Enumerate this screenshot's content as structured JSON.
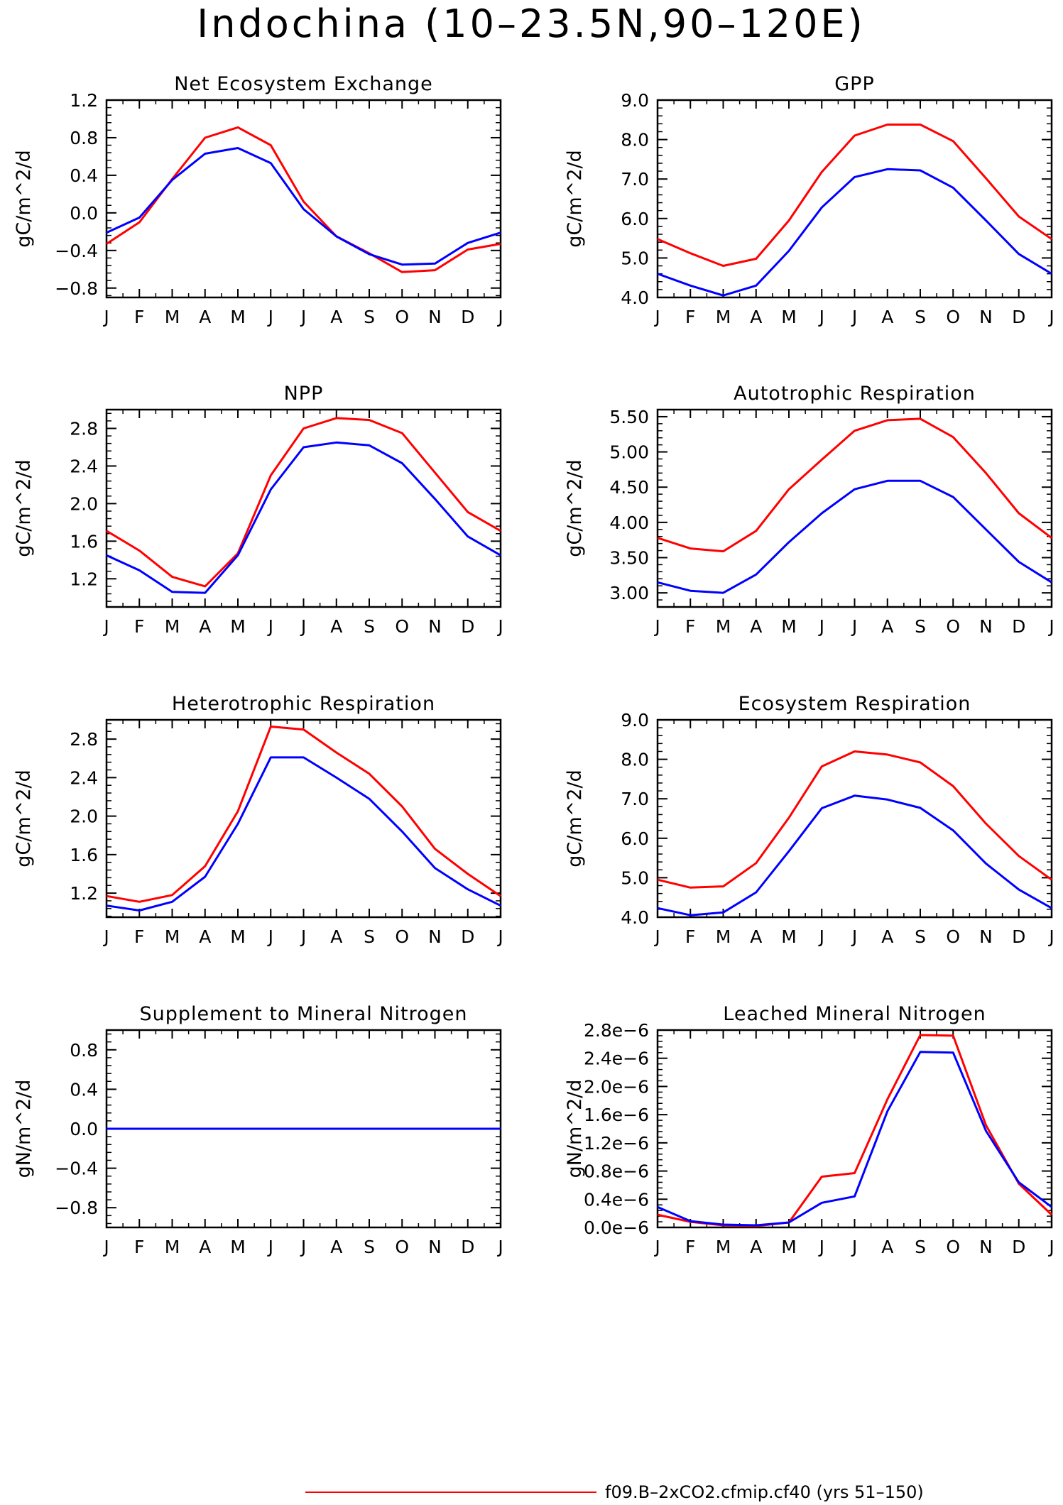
{
  "page_title": "Indochina (10–23.5N,90–120E)",
  "months": [
    "J",
    "F",
    "M",
    "A",
    "M",
    "J",
    "J",
    "A",
    "S",
    "O",
    "N",
    "D",
    "J"
  ],
  "colors": {
    "case": "#ff0000",
    "control": "#0000ff",
    "axis": "#000000"
  },
  "legend": {
    "entries": [
      {
        "label": "f09.B–2xCO2.cfmip.cf40 (yrs 51–150)",
        "color": "#ff0000"
      }
    ]
  },
  "chart_data": [
    {
      "type": "line",
      "title": "Net Ecosystem Exchange",
      "ylabel": "gC/m^2/d",
      "ylim": [
        -0.9,
        1.2
      ],
      "yticks": [
        -0.8,
        -0.4,
        0.0,
        0.4,
        0.8,
        1.2
      ],
      "ytick_labels": [
        "−0.8",
        "−0.4",
        "0.0",
        "0.4",
        "0.8",
        "1.2"
      ],
      "categories": [
        "J",
        "F",
        "M",
        "A",
        "M",
        "J",
        "J",
        "A",
        "S",
        "O",
        "N",
        "D",
        "J"
      ],
      "series": [
        {
          "color": "#ff0000",
          "values": [
            -0.33,
            -0.1,
            0.36,
            0.8,
            0.91,
            0.72,
            0.12,
            -0.25,
            -0.43,
            -0.63,
            -0.61,
            -0.39,
            -0.33
          ]
        },
        {
          "color": "#0000ff",
          "values": [
            -0.21,
            -0.05,
            0.35,
            0.63,
            0.69,
            0.53,
            0.04,
            -0.25,
            -0.44,
            -0.55,
            -0.54,
            -0.32,
            -0.21
          ]
        }
      ]
    },
    {
      "type": "line",
      "title": "GPP",
      "ylabel": "gC/m^2/d",
      "ylim": [
        4.0,
        9.0
      ],
      "yticks": [
        4.0,
        5.0,
        6.0,
        7.0,
        8.0,
        9.0
      ],
      "ytick_labels": [
        "4.0",
        "5.0",
        "6.0",
        "7.0",
        "8.0",
        "9.0"
      ],
      "categories": [
        "J",
        "F",
        "M",
        "A",
        "M",
        "J",
        "J",
        "A",
        "S",
        "O",
        "N",
        "D",
        "J"
      ],
      "series": [
        {
          "color": "#ff0000",
          "values": [
            5.48,
            5.12,
            4.8,
            4.98,
            5.95,
            7.18,
            8.1,
            8.38,
            8.38,
            7.96,
            7.02,
            6.05,
            5.48
          ]
        },
        {
          "color": "#0000ff",
          "values": [
            4.6,
            4.3,
            4.05,
            4.3,
            5.18,
            6.28,
            7.05,
            7.25,
            7.22,
            6.78,
            5.95,
            5.1,
            4.6
          ]
        }
      ]
    },
    {
      "type": "line",
      "title": "NPP",
      "ylabel": "gC/m^2/d",
      "ylim": [
        0.9,
        3.0
      ],
      "yticks": [
        1.2,
        1.6,
        2.0,
        2.4,
        2.8
      ],
      "ytick_labels": [
        "1.2",
        "1.6",
        "2.0",
        "2.4",
        "2.8"
      ],
      "categories": [
        "J",
        "F",
        "M",
        "A",
        "M",
        "J",
        "J",
        "A",
        "S",
        "O",
        "N",
        "D",
        "J"
      ],
      "series": [
        {
          "color": "#ff0000",
          "values": [
            1.71,
            1.5,
            1.22,
            1.12,
            1.47,
            2.3,
            2.8,
            2.91,
            2.89,
            2.75,
            2.33,
            1.91,
            1.71
          ]
        },
        {
          "color": "#0000ff",
          "values": [
            1.45,
            1.29,
            1.06,
            1.05,
            1.45,
            2.15,
            2.6,
            2.65,
            2.62,
            2.43,
            2.05,
            1.65,
            1.45
          ]
        }
      ]
    },
    {
      "type": "line",
      "title": "Autotrophic Respiration",
      "ylabel": "gC/m^2/d",
      "ylim": [
        2.8,
        5.6
      ],
      "yticks": [
        3.0,
        3.5,
        4.0,
        4.5,
        5.0,
        5.5
      ],
      "ytick_labels": [
        "3.00",
        "3.50",
        "4.00",
        "4.50",
        "5.00",
        "5.50"
      ],
      "categories": [
        "J",
        "F",
        "M",
        "A",
        "M",
        "J",
        "J",
        "A",
        "S",
        "O",
        "N",
        "D",
        "J"
      ],
      "series": [
        {
          "color": "#ff0000",
          "values": [
            3.78,
            3.63,
            3.59,
            3.88,
            4.47,
            4.89,
            5.3,
            5.45,
            5.47,
            5.21,
            4.7,
            4.13,
            3.78
          ]
        },
        {
          "color": "#0000ff",
          "values": [
            3.15,
            3.03,
            3.0,
            3.26,
            3.72,
            4.13,
            4.47,
            4.59,
            4.59,
            4.36,
            3.9,
            3.44,
            3.15
          ]
        }
      ]
    },
    {
      "type": "line",
      "title": "Heterotrophic Respiration",
      "ylabel": "gC/m^2/d",
      "ylim": [
        0.95,
        3.0
      ],
      "yticks": [
        1.2,
        1.6,
        2.0,
        2.4,
        2.8
      ],
      "ytick_labels": [
        "1.2",
        "1.6",
        "2.0",
        "2.4",
        "2.8"
      ],
      "categories": [
        "J",
        "F",
        "M",
        "A",
        "M",
        "J",
        "J",
        "A",
        "S",
        "O",
        "N",
        "D",
        "J"
      ],
      "series": [
        {
          "color": "#ff0000",
          "values": [
            1.17,
            1.11,
            1.18,
            1.48,
            2.05,
            2.93,
            2.9,
            2.66,
            2.44,
            2.1,
            1.66,
            1.4,
            1.17
          ]
        },
        {
          "color": "#0000ff",
          "values": [
            1.07,
            1.02,
            1.11,
            1.37,
            1.92,
            2.61,
            2.61,
            2.4,
            2.18,
            1.84,
            1.46,
            1.24,
            1.07
          ]
        }
      ]
    },
    {
      "type": "line",
      "title": "Ecosystem Respiration",
      "ylabel": "gC/m^2/d",
      "ylim": [
        4.0,
        9.0
      ],
      "yticks": [
        4.0,
        5.0,
        6.0,
        7.0,
        8.0,
        9.0
      ],
      "ytick_labels": [
        "4.0",
        "5.0",
        "6.0",
        "7.0",
        "8.0",
        "9.0"
      ],
      "categories": [
        "J",
        "F",
        "M",
        "A",
        "M",
        "J",
        "J",
        "A",
        "S",
        "O",
        "N",
        "D",
        "J"
      ],
      "series": [
        {
          "color": "#ff0000",
          "values": [
            4.95,
            4.75,
            4.78,
            5.37,
            6.52,
            7.82,
            8.2,
            8.12,
            7.92,
            7.32,
            6.37,
            5.55,
            4.95
          ]
        },
        {
          "color": "#0000ff",
          "values": [
            4.23,
            4.05,
            4.12,
            4.63,
            5.67,
            6.76,
            7.08,
            6.98,
            6.77,
            6.2,
            5.36,
            4.7,
            4.23
          ]
        }
      ]
    },
    {
      "type": "line",
      "title": "Supplement to Mineral Nitrogen",
      "ylabel": "gN/m^2/d",
      "ylim": [
        -1.0,
        1.0
      ],
      "yticks": [
        -0.8,
        -0.4,
        0.0,
        0.4,
        0.8
      ],
      "ytick_labels": [
        "−0.8",
        "−0.4",
        "0.0",
        "0.4",
        "0.8"
      ],
      "categories": [
        "J",
        "F",
        "M",
        "A",
        "M",
        "J",
        "J",
        "A",
        "S",
        "O",
        "N",
        "D",
        "J"
      ],
      "series": [
        {
          "color": "#ff0000",
          "values": [
            0,
            0,
            0,
            0,
            0,
            0,
            0,
            0,
            0,
            0,
            0,
            0,
            0
          ]
        },
        {
          "color": "#0000ff",
          "values": [
            0,
            0,
            0,
            0,
            0,
            0,
            0,
            0,
            0,
            0,
            0,
            0,
            0
          ]
        }
      ]
    },
    {
      "type": "line",
      "title": "Leached Mineral Nitrogen",
      "ylabel": "gN/m^2/d",
      "ylim": [
        0.0,
        2.8e-06
      ],
      "yticks": [
        0.0,
        4e-07,
        8e-07,
        1.2e-06,
        1.6e-06,
        2e-06,
        2.4e-06,
        2.8e-06
      ],
      "ytick_labels": [
        "0.0e−6",
        "0.4e−6",
        "0.8e−6",
        "1.2e−6",
        "1.6e−6",
        "2.0e−6",
        "2.4e−6",
        "2.8e−6"
      ],
      "categories": [
        "J",
        "F",
        "M",
        "A",
        "M",
        "J",
        "J",
        "A",
        "S",
        "O",
        "N",
        "D",
        "J"
      ],
      "series": [
        {
          "color": "#ff0000",
          "values": [
            1.8e-07,
            8e-08,
            3e-08,
            2e-08,
            7e-08,
            7.2e-07,
            7.7e-07,
            1.82e-06,
            2.73e-06,
            2.72e-06,
            1.45e-06,
            6.2e-07,
            1.8e-07
          ]
        },
        {
          "color": "#0000ff",
          "values": [
            2.9e-07,
            9e-08,
            4e-08,
            3e-08,
            7e-08,
            3.5e-07,
            4.4e-07,
            1.65e-06,
            2.49e-06,
            2.48e-06,
            1.37e-06,
            6.4e-07,
            2.9e-07
          ]
        }
      ]
    }
  ]
}
